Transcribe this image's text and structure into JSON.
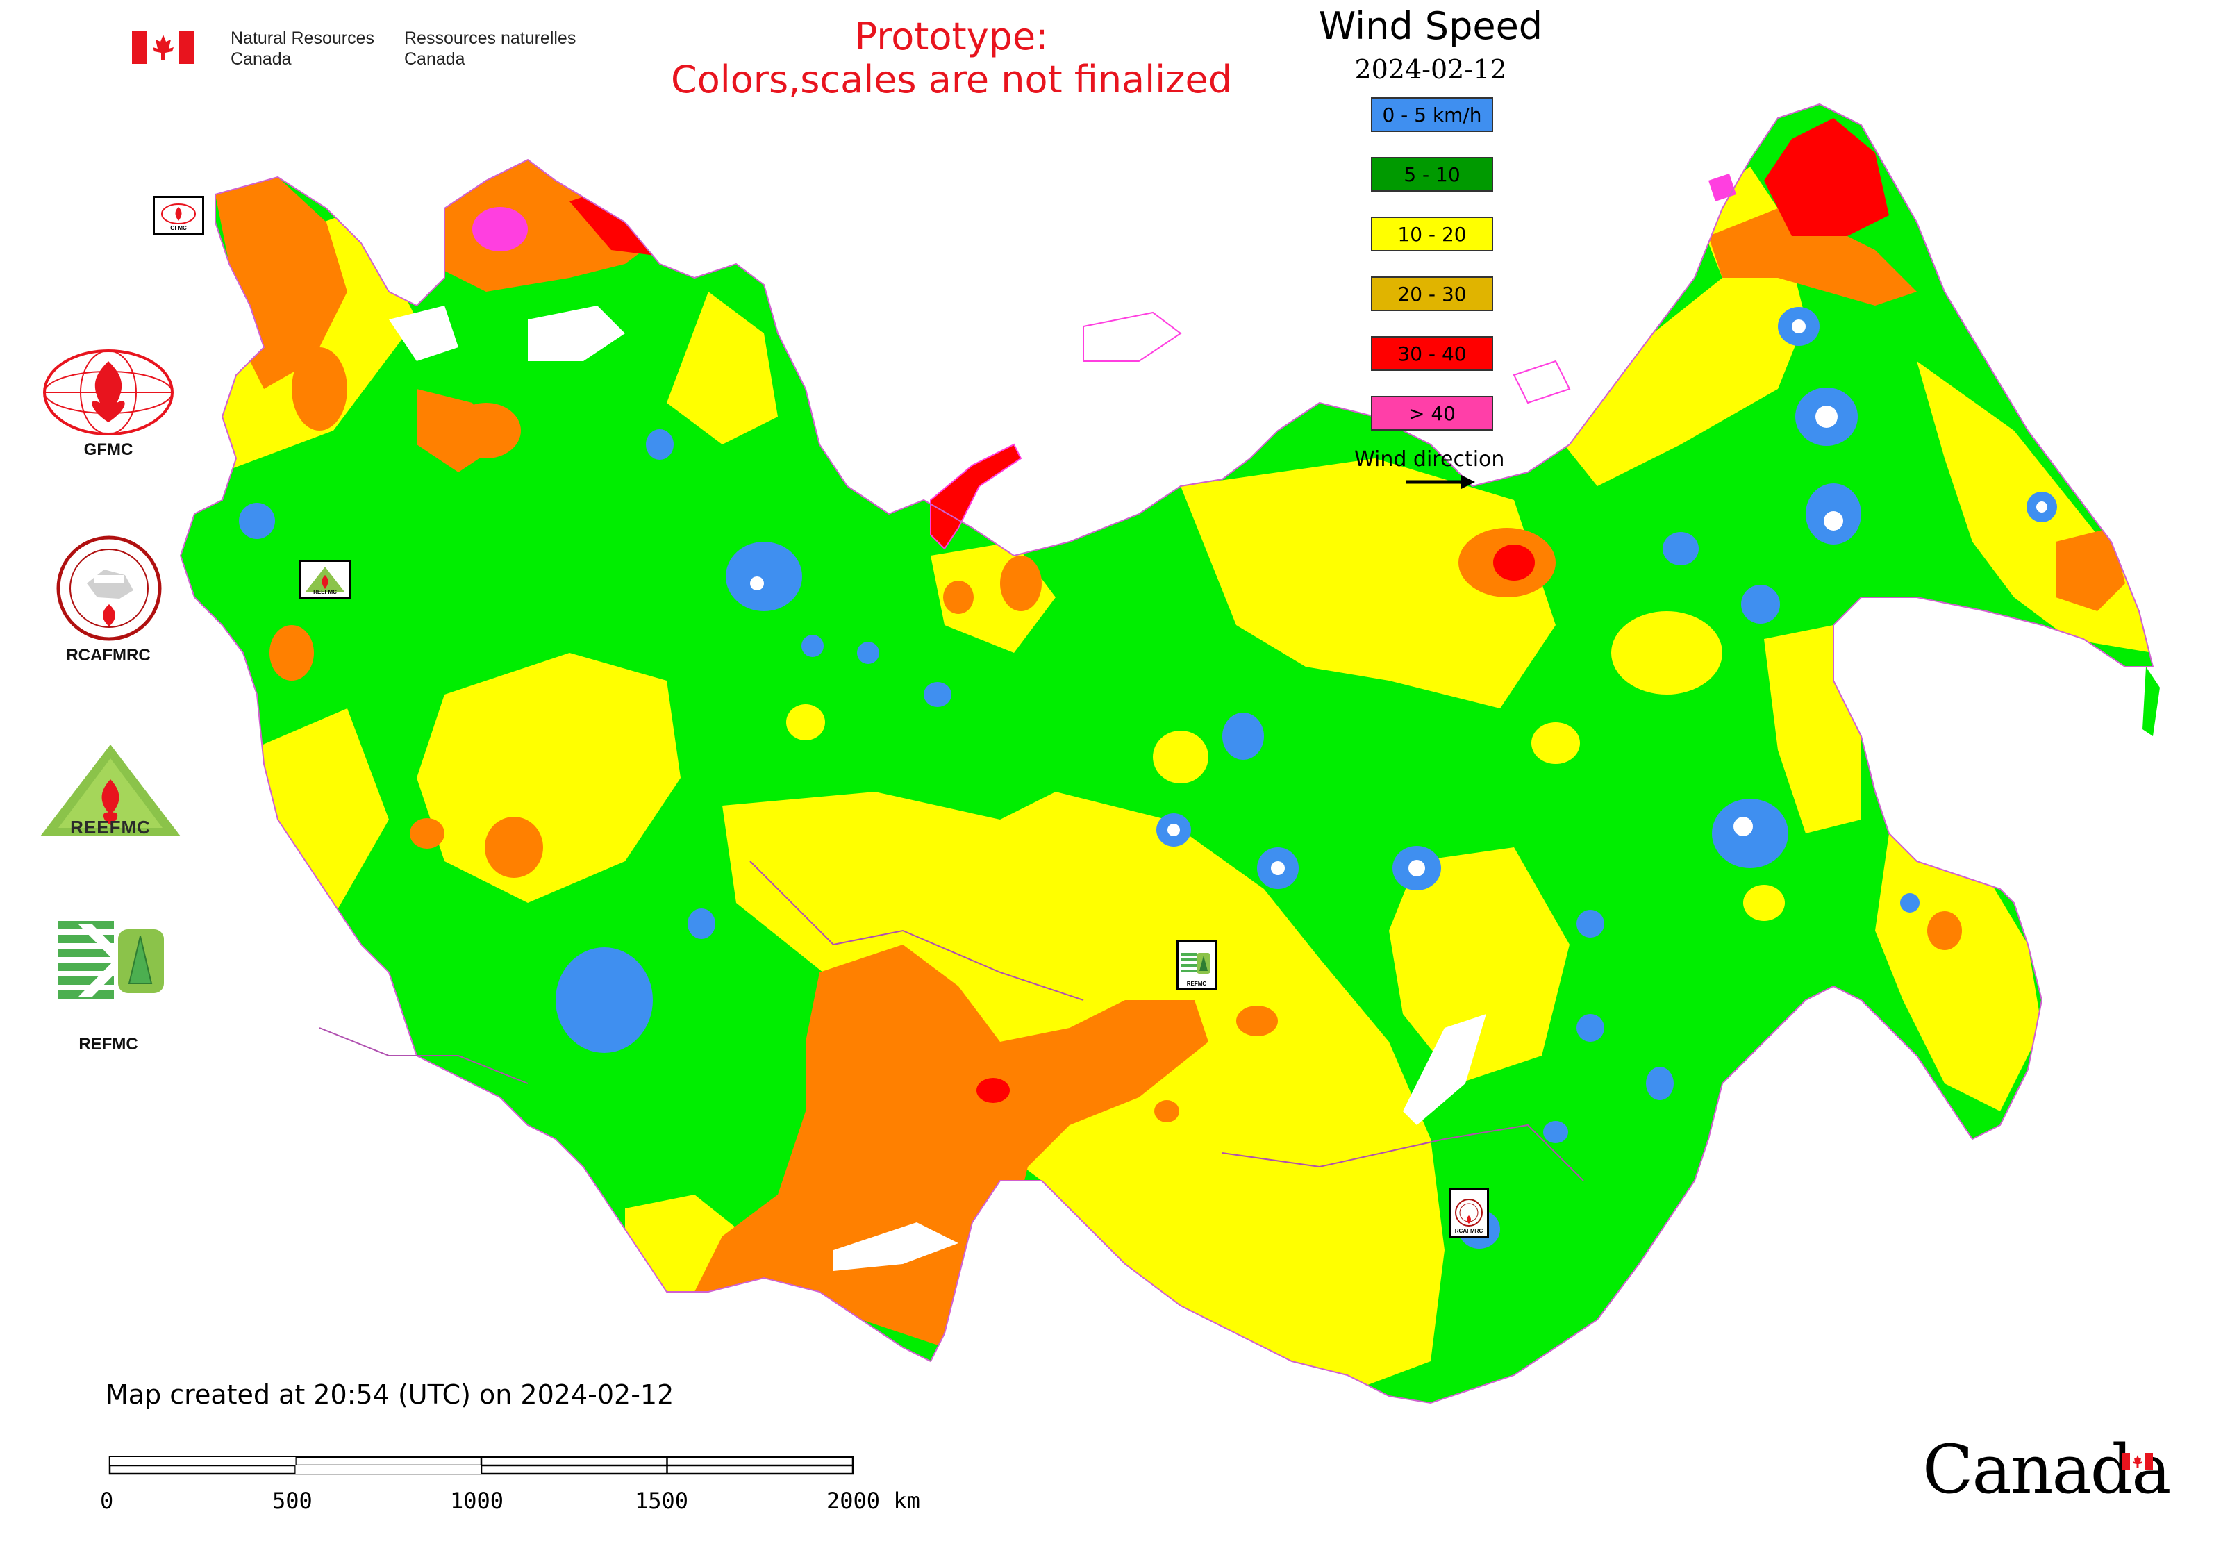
{
  "header": {
    "agency_en_line1": "Natural Resources",
    "agency_en_line2": "Canada",
    "agency_fr_line1": "Ressources naturelles",
    "agency_fr_line2": "Canada",
    "prototype_line1": "Prototype:",
    "prototype_line2": "Colors,scales are not finalized"
  },
  "legend": {
    "title": "Wind Speed",
    "date": "2024-02-12",
    "classes": [
      {
        "label": "0 - 5 km/h",
        "color": "#3f8ff0"
      },
      {
        "label": "5 - 10",
        "color": "#009a00"
      },
      {
        "label": "10 - 20",
        "color": "#ffff00"
      },
      {
        "label": "20 - 30",
        "color": "#e0b400"
      },
      {
        "label": "30 - 40",
        "color": "#ff0000"
      },
      {
        "label": "> 40",
        "color": "#ff3fa8"
      }
    ],
    "wind_direction_label": "Wind direction"
  },
  "map_colors": {
    "calm": "#3f8ff0",
    "low": "#00ee00",
    "moderate": "#ffff00",
    "high": "#ff8000",
    "very_high": "#ff0000",
    "extreme": "#ff3fe0"
  },
  "logos": [
    {
      "label": "GFMC",
      "icon": "gfmc-logo-icon"
    },
    {
      "label": "RCAFMRC",
      "icon": "rcafmrc-logo-icon"
    },
    {
      "label": "",
      "icon": "reefmc-logo-icon",
      "logo_text": "REEFMC"
    },
    {
      "label": "REFMC",
      "icon": "refmc-logo-icon"
    }
  ],
  "map_markers": [
    {
      "label": "GFMC"
    },
    {
      "label": "REEFMC"
    },
    {
      "label": "REFMC"
    },
    {
      "label": "RCAFMRC"
    }
  ],
  "footer": {
    "created_text": "Map created at 20:54 (UTC) on 2024-02-12",
    "scale_ticks": [
      "0",
      "500",
      "1000",
      "1500",
      "2000 km"
    ],
    "wordmark": "Canada"
  }
}
